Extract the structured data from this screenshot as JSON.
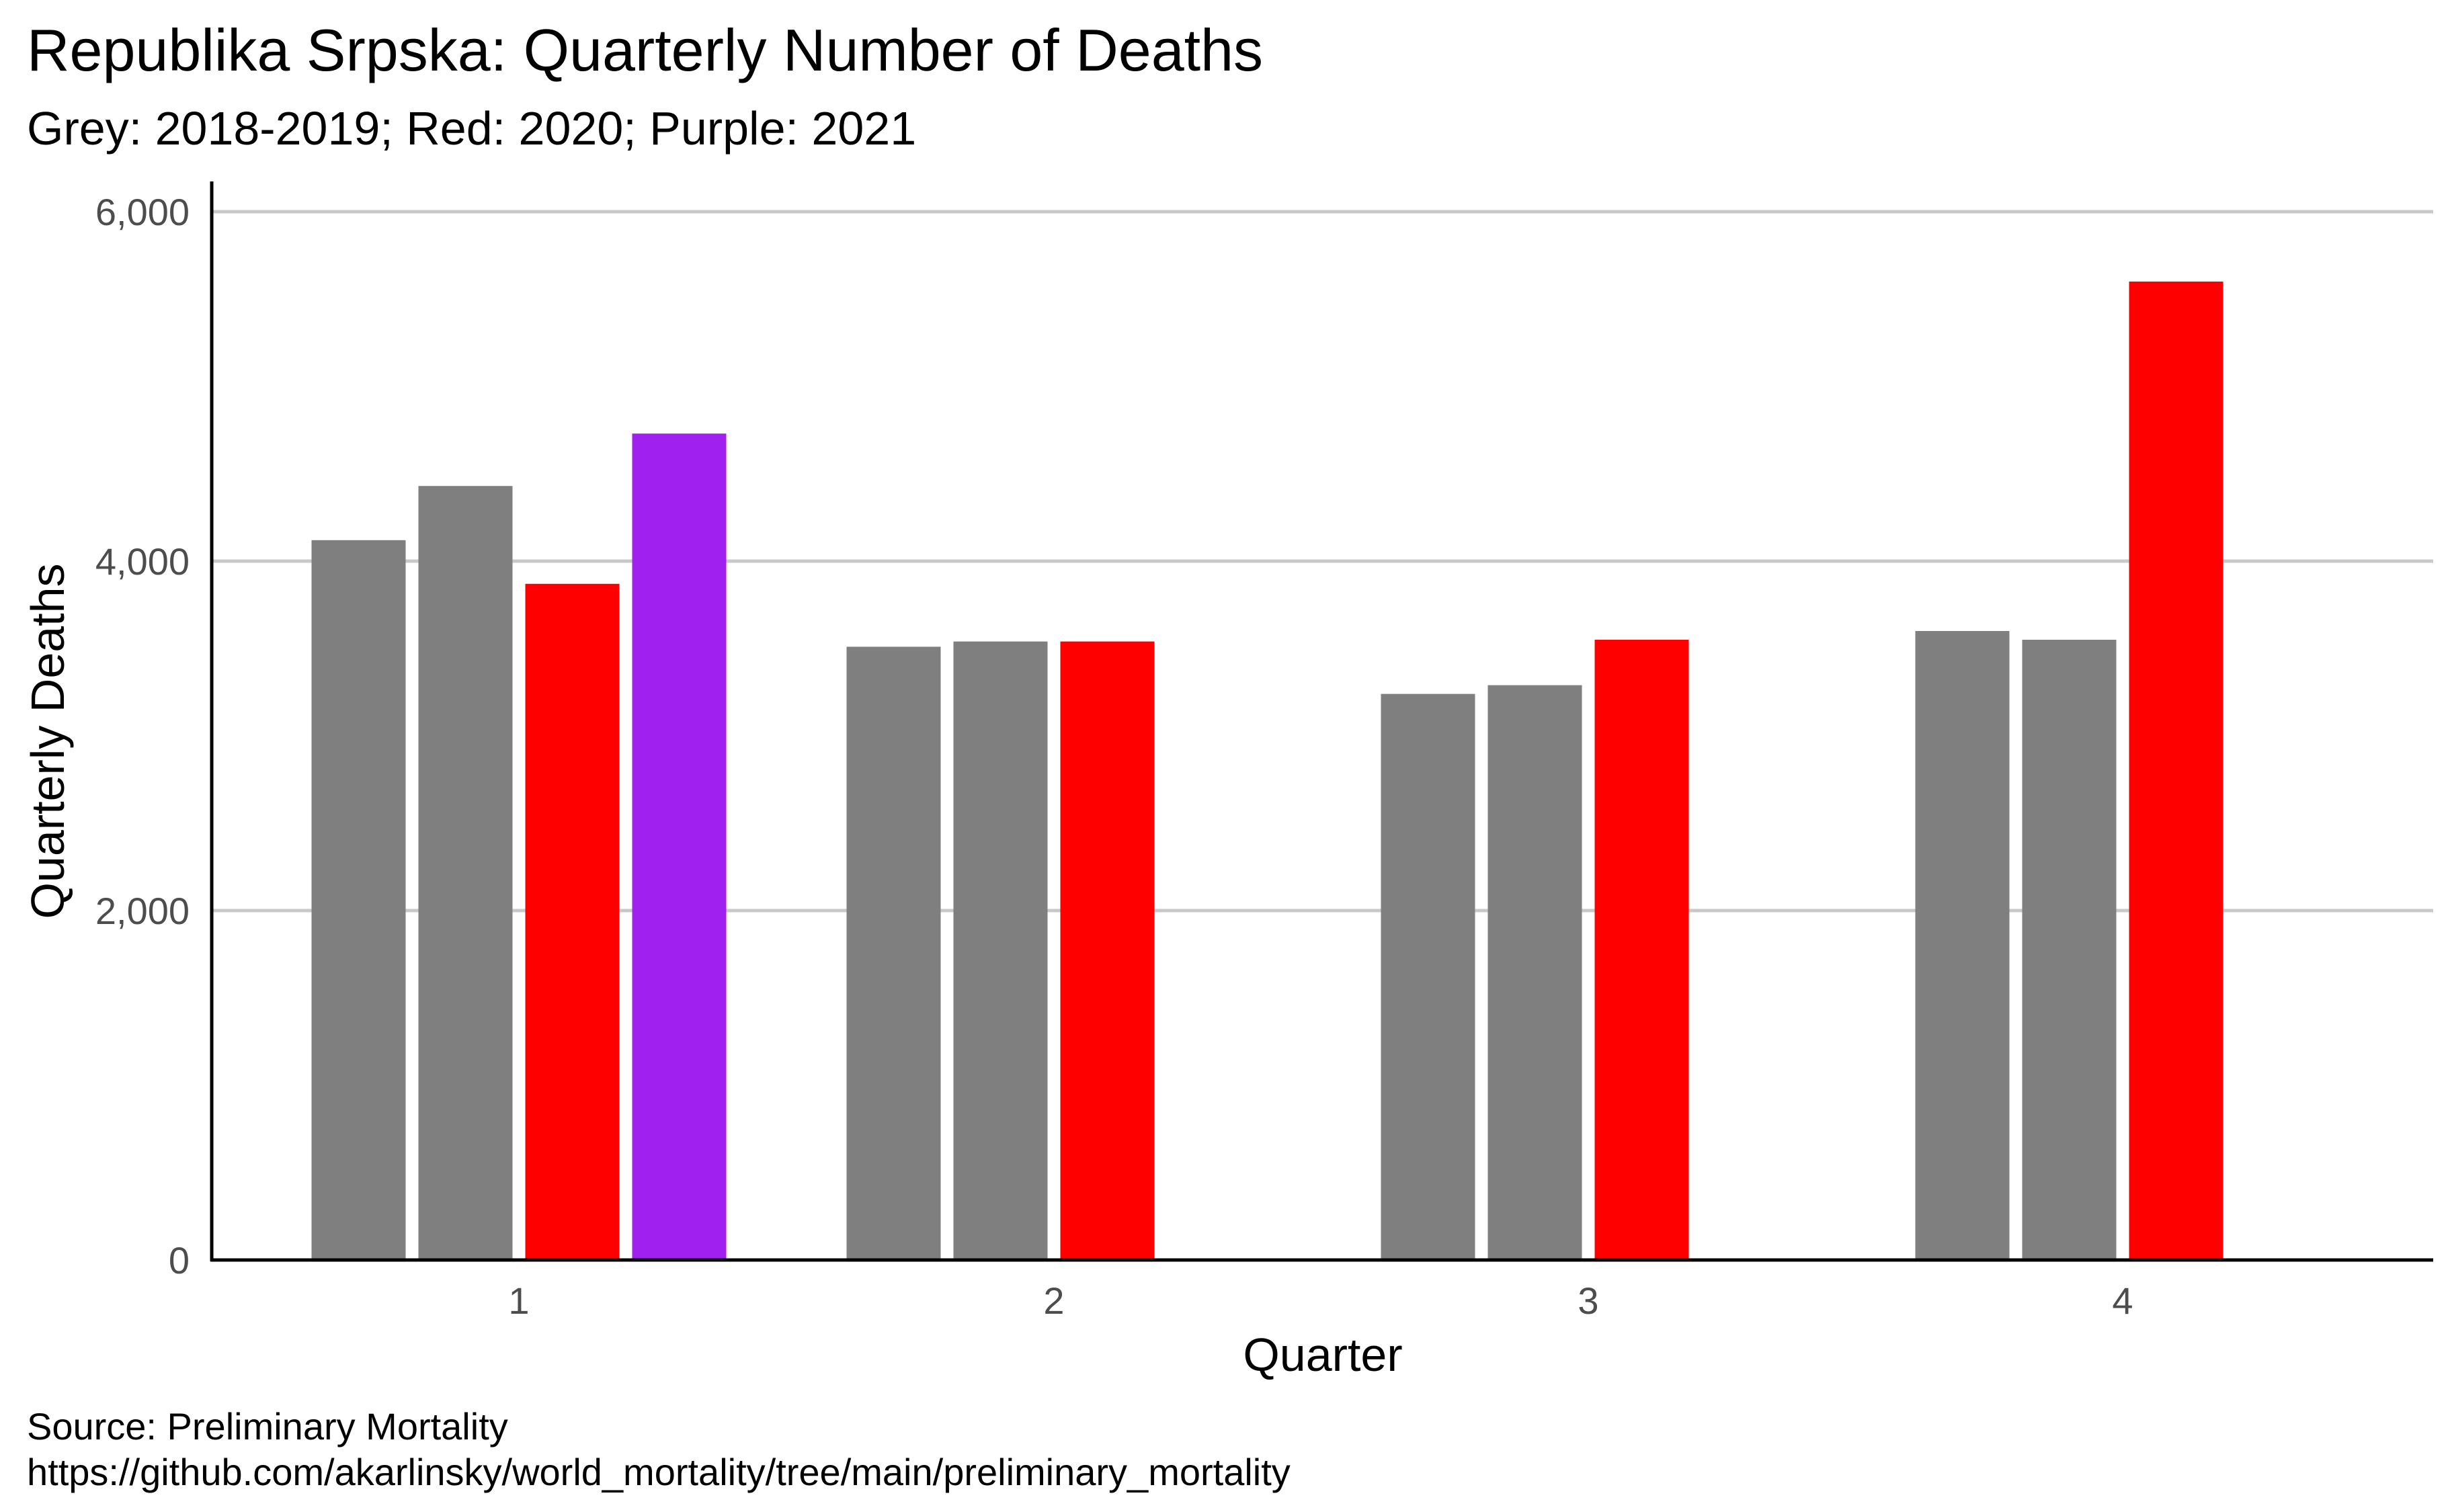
{
  "title": "Republika Srpska: Quarterly Number of Deaths",
  "subtitle": "Grey: 2018-2019; Red: 2020; Purple: 2021",
  "caption": {
    "line1": "Source: Preliminary Mortality",
    "line2": "https://github.com/akarlinsky/world_mortality/tree/main/preliminary_mortality"
  },
  "colors": {
    "grey": "#7f7f7f",
    "red": "#ff0000",
    "purple": "#a020f0",
    "grid": "#c8c8c8",
    "axis": "#000000"
  },
  "chart_data": {
    "type": "bar",
    "xlabel": "Quarter",
    "ylabel": "Quarterly Deaths",
    "ylim": [
      0,
      6000
    ],
    "yticks": [
      0,
      2000,
      4000,
      6000
    ],
    "ytick_labels": [
      "0",
      "2,000",
      "4,000",
      "6,000"
    ],
    "categories": [
      "1",
      "2",
      "3",
      "4"
    ],
    "grid": "horizontal",
    "series": [
      {
        "year": "2018",
        "color": "grey",
        "values": [
          4120,
          3510,
          3240,
          3600
        ]
      },
      {
        "year": "2019",
        "color": "grey",
        "values": [
          4430,
          3540,
          3290,
          3550
        ]
      },
      {
        "year": "2020",
        "color": "red",
        "values": [
          3870,
          3540,
          3550,
          5600
        ]
      },
      {
        "year": "2021",
        "color": "purple",
        "values": [
          4730,
          null,
          null,
          null
        ]
      }
    ]
  }
}
